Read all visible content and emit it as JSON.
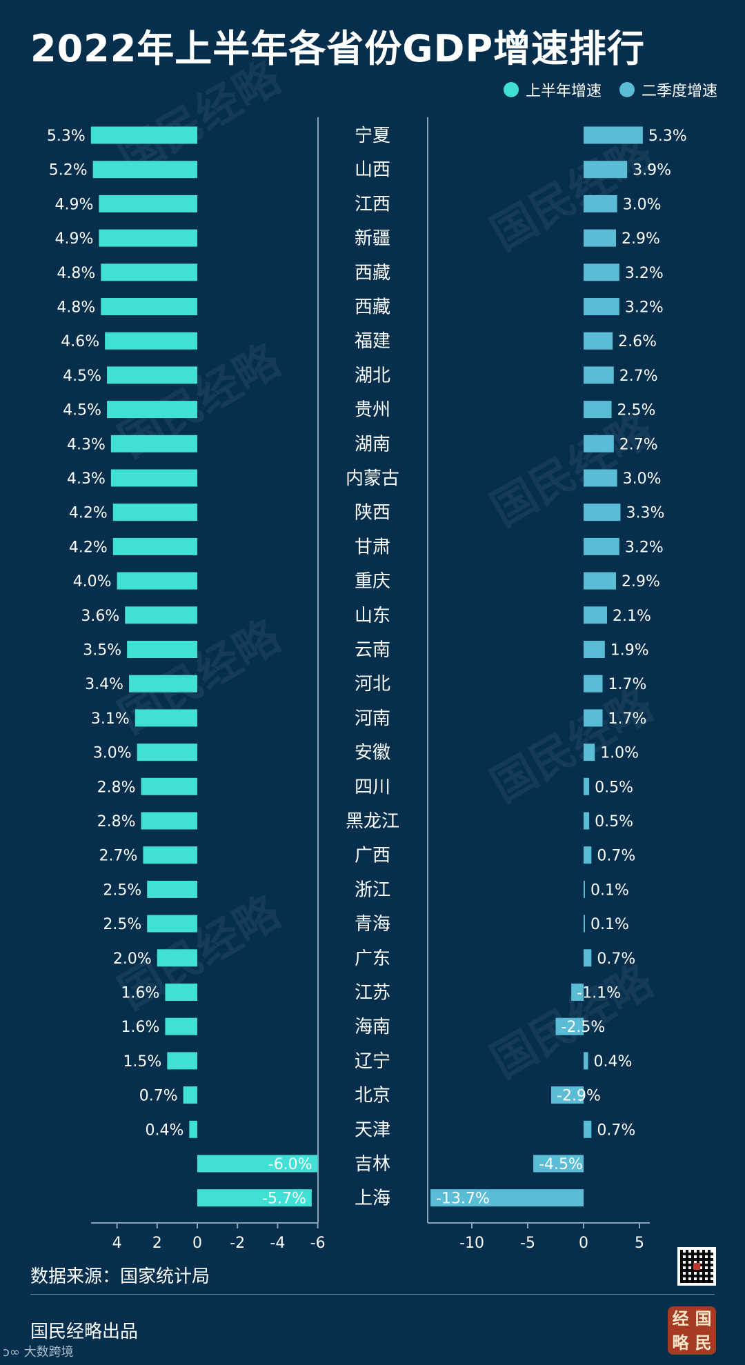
{
  "title": "2022年上半年各省份GDP增速排行",
  "legend": {
    "h1": "上半年增速",
    "q2": "二季度增速"
  },
  "colors": {
    "background": "#062f4d",
    "h1_bar": "#40e0d6",
    "q2_bar": "#5bbcd6",
    "axis": "#8aa3b6"
  },
  "source": "数据来源：国家统计局",
  "publisher": "国民经略出品",
  "seal_chars": [
    "经",
    "国",
    "略",
    "民"
  ],
  "bottom_logo": "大数跨境",
  "chart_data": [
    {
      "type": "bar",
      "orientation": "horizontal",
      "series": [
        {
          "name": "上半年增速"
        }
      ],
      "xlim": [
        5.5,
        -6.0
      ],
      "xticks": [
        4,
        2,
        0,
        -2,
        -4,
        -6
      ],
      "xtick_labels": [
        "4",
        "2",
        "0",
        "-2",
        "-4",
        "-6"
      ],
      "value_suffix": "%"
    },
    {
      "type": "bar",
      "orientation": "horizontal",
      "series": [
        {
          "name": "二季度增速"
        }
      ],
      "xlim": [
        -13.8,
        5.5
      ],
      "xticks": [
        -10,
        -5,
        0,
        5
      ],
      "xtick_labels": [
        "-10",
        "-5",
        "0",
        "5"
      ],
      "value_suffix": "%"
    }
  ],
  "provinces": [
    "宁夏",
    "山西",
    "江西",
    "新疆",
    "西藏",
    "西藏",
    "福建",
    "湖北",
    "贵州",
    "湖南",
    "内蒙古",
    "陕西",
    "甘肃",
    "重庆",
    "山东",
    "云南",
    "河北",
    "河南",
    "安徽",
    "四川",
    "黑龙江",
    "广西",
    "浙江",
    "青海",
    "广东",
    "江苏",
    "海南",
    "辽宁",
    "北京",
    "天津",
    "吉林",
    "上海"
  ],
  "h1_values": [
    5.3,
    5.2,
    4.9,
    4.9,
    4.8,
    4.8,
    4.6,
    4.5,
    4.5,
    4.3,
    4.3,
    4.2,
    4.2,
    4.0,
    3.6,
    3.5,
    3.4,
    3.1,
    3.0,
    2.8,
    2.8,
    2.7,
    2.5,
    2.5,
    2.0,
    1.6,
    1.6,
    1.5,
    0.7,
    0.4,
    -6.0,
    -5.7
  ],
  "q2_values": [
    5.3,
    3.9,
    3.0,
    2.9,
    3.2,
    3.2,
    2.6,
    2.7,
    2.5,
    2.7,
    3.0,
    3.3,
    3.2,
    2.9,
    2.1,
    1.9,
    1.7,
    1.7,
    1.0,
    0.5,
    0.5,
    0.7,
    0.1,
    0.1,
    0.7,
    -1.1,
    -2.5,
    0.4,
    -2.9,
    0.7,
    -4.5,
    -13.7
  ],
  "watermark_text": "国民经略"
}
